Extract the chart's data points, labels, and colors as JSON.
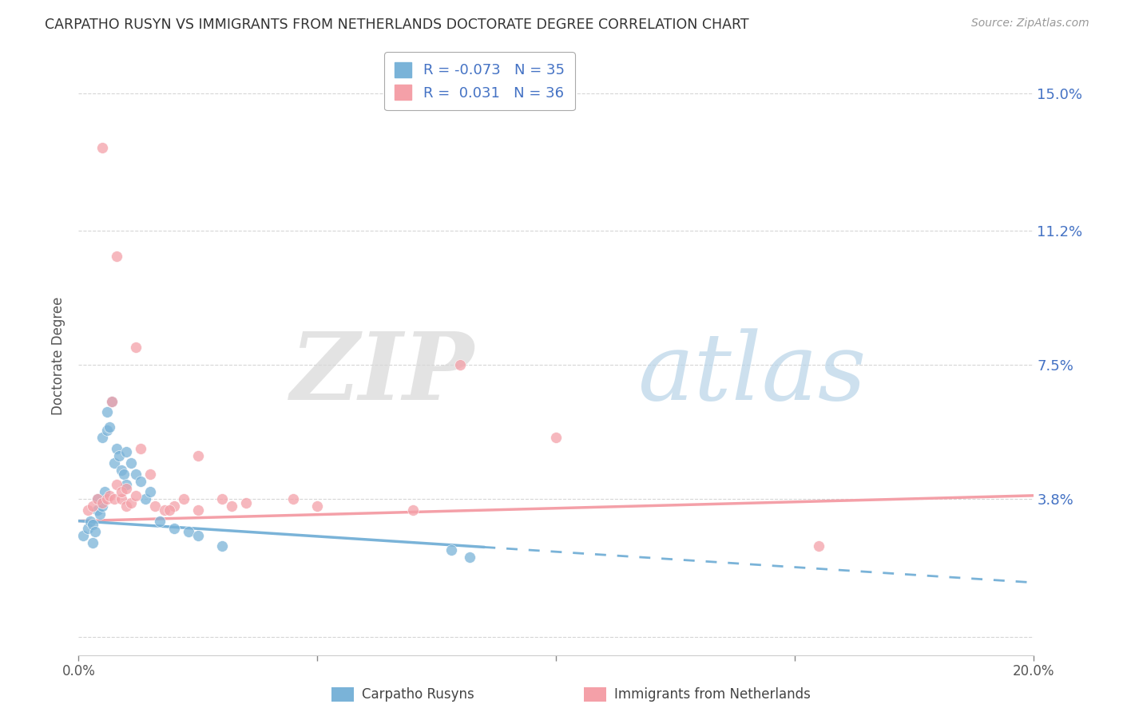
{
  "title": "CARPATHO RUSYN VS IMMIGRANTS FROM NETHERLANDS DOCTORATE DEGREE CORRELATION CHART",
  "source": "Source: ZipAtlas.com",
  "ylabel": "Doctorate Degree",
  "ytick_labels": [
    "",
    "3.8%",
    "7.5%",
    "11.2%",
    "15.0%"
  ],
  "ytick_vals": [
    0.0,
    3.8,
    7.5,
    11.2,
    15.0
  ],
  "xlim": [
    0.0,
    20.0
  ],
  "ylim": [
    -0.5,
    16.0
  ],
  "legend_blue_R": "-0.073",
  "legend_blue_N": "35",
  "legend_pink_R": "0.031",
  "legend_pink_N": "36",
  "blue_color": "#7ab3d8",
  "pink_color": "#f4a0a8",
  "tick_color": "#4472c4",
  "blue_scatter_x": [
    0.1,
    0.2,
    0.25,
    0.3,
    0.3,
    0.35,
    0.4,
    0.4,
    0.45,
    0.5,
    0.5,
    0.55,
    0.6,
    0.6,
    0.65,
    0.7,
    0.75,
    0.8,
    0.85,
    0.9,
    0.95,
    1.0,
    1.0,
    1.1,
    1.2,
    1.3,
    1.4,
    1.5,
    1.7,
    2.0,
    2.3,
    2.5,
    3.0,
    7.8,
    8.2
  ],
  "blue_scatter_y": [
    2.8,
    3.0,
    3.2,
    3.1,
    2.6,
    2.9,
    3.5,
    3.8,
    3.4,
    5.5,
    3.6,
    4.0,
    5.7,
    6.2,
    5.8,
    6.5,
    4.8,
    5.2,
    5.0,
    4.6,
    4.5,
    4.2,
    5.1,
    4.8,
    4.5,
    4.3,
    3.8,
    4.0,
    3.2,
    3.0,
    2.9,
    2.8,
    2.5,
    2.4,
    2.2
  ],
  "pink_scatter_x": [
    0.2,
    0.3,
    0.4,
    0.5,
    0.6,
    0.65,
    0.7,
    0.75,
    0.8,
    0.9,
    0.9,
    1.0,
    1.0,
    1.1,
    1.2,
    1.3,
    1.5,
    1.6,
    1.8,
    2.0,
    2.2,
    2.5,
    2.5,
    3.0,
    3.5,
    4.5,
    5.0,
    7.0,
    8.0,
    10.0,
    15.5,
    0.5,
    0.8,
    1.2,
    1.9,
    3.2
  ],
  "pink_scatter_y": [
    3.5,
    3.6,
    3.8,
    3.7,
    3.8,
    3.9,
    6.5,
    3.8,
    4.2,
    3.8,
    4.0,
    4.1,
    3.6,
    3.7,
    3.9,
    5.2,
    4.5,
    3.6,
    3.5,
    3.6,
    3.8,
    3.5,
    5.0,
    3.8,
    3.7,
    3.8,
    3.6,
    3.5,
    7.5,
    5.5,
    2.5,
    13.5,
    10.5,
    8.0,
    3.5,
    3.6
  ],
  "blue_data_max_x": 8.5,
  "pink_trend_y0": 3.2,
  "pink_trend_y1": 3.9,
  "blue_trend_y0": 3.2,
  "blue_trend_y1": 1.5
}
